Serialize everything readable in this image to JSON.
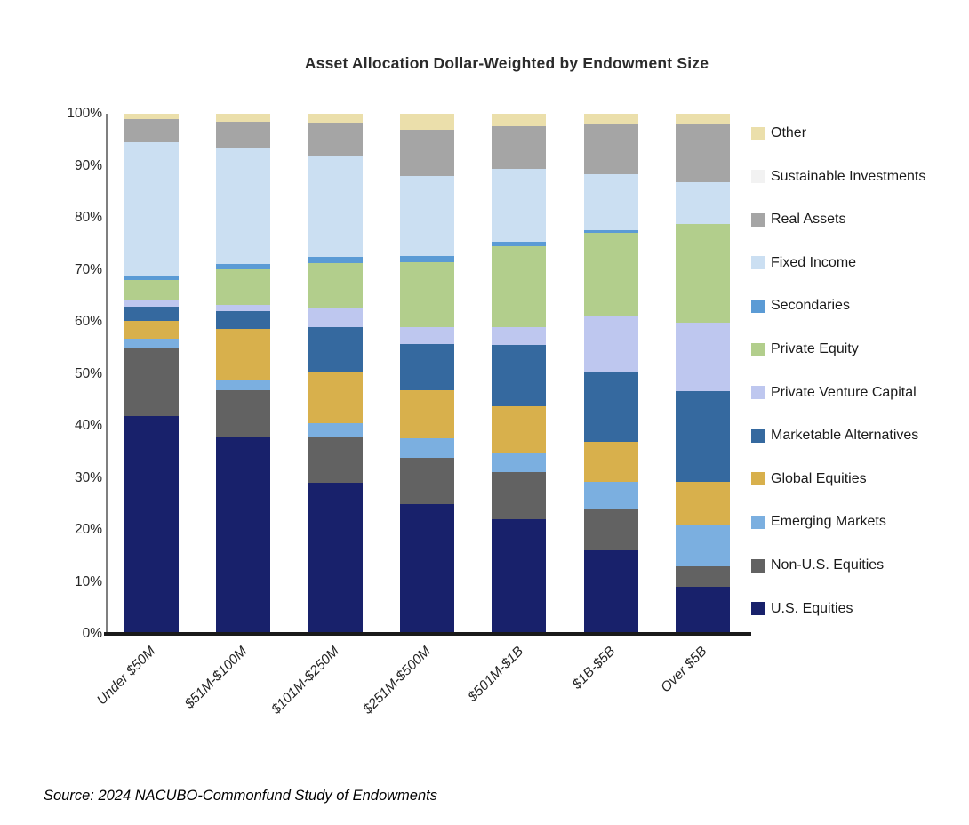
{
  "title": "Asset Allocation Dollar-Weighted by Endowment Size",
  "source": "Source: 2024 NACUBO-Commonfund Study of Endowments",
  "chart_data": {
    "type": "bar",
    "variant": "100-percent-stacked-column",
    "title": "Asset Allocation Dollar-Weighted by Endowment Size",
    "xlabel": "",
    "ylabel": "",
    "ylim": [
      0,
      100
    ],
    "grid": false,
    "legend_position": "right",
    "y_tick_labels": [
      "0%",
      "10%",
      "20%",
      "30%",
      "40%",
      "50%",
      "60%",
      "70%",
      "80%",
      "90%",
      "100%"
    ],
    "categories": [
      "Under $50M",
      "$51M-$100M",
      "$101M-$250M",
      "$251M-$500M",
      "$501M-$1B",
      "$1B-$5B",
      "Over $5B"
    ],
    "series_note": "series listed bottom-to-top of stack; values are percent of each column",
    "series": [
      {
        "name": "U.S. Equities",
        "color": "#18216B",
        "values": [
          42,
          38,
          29,
          25,
          22,
          16,
          9
        ]
      },
      {
        "name": "Non-U.S. Equities",
        "color": "#626262",
        "values": [
          12.9,
          9.1,
          8.8,
          8.8,
          9.2,
          8,
          4
        ]
      },
      {
        "name": "Emerging Markets",
        "color": "#7BAFE0",
        "values": [
          2,
          2.1,
          2.8,
          3.9,
          3.6,
          5.2,
          8
        ]
      },
      {
        "name": "Global Equities",
        "color": "#D8B04C",
        "values": [
          3.3,
          9.7,
          9.9,
          9.2,
          9,
          7.7,
          8.2
        ]
      },
      {
        "name": "Marketable Alternatives",
        "color": "#35699F",
        "values": [
          2.8,
          3.5,
          8.5,
          8.8,
          11.9,
          13.6,
          17.5
        ]
      },
      {
        "name": "Private Venture Capital",
        "color": "#BEC7EF",
        "values": [
          1.4,
          1.1,
          3.8,
          3.4,
          3.3,
          10.5,
          13.1
        ]
      },
      {
        "name": "Private Equity",
        "color": "#B2CE8C",
        "values": [
          3.8,
          7,
          8.5,
          12.4,
          15.6,
          16.1,
          19
        ]
      },
      {
        "name": "Secondaries",
        "color": "#5B9BD5",
        "values": [
          0.8,
          0.9,
          1.2,
          1.3,
          0.9,
          0.6,
          0
        ]
      },
      {
        "name": "Fixed Income",
        "color": "#CBDFF2",
        "values": [
          25.7,
          22.6,
          19.6,
          15.4,
          14.1,
          10.8,
          8
        ]
      },
      {
        "name": "Real Assets",
        "color": "#A5A5A5",
        "values": [
          4.5,
          5,
          6.3,
          8.9,
          8.2,
          9.8,
          11.1
        ]
      },
      {
        "name": "Sustainable Investments",
        "color": "#F2F2F2",
        "values": [
          0,
          0,
          0,
          0,
          0,
          0,
          0
        ]
      },
      {
        "name": "Other",
        "color": "#EBDFAB",
        "values": [
          1,
          1.5,
          1.7,
          3,
          2.4,
          1.8,
          2.1
        ]
      }
    ]
  }
}
